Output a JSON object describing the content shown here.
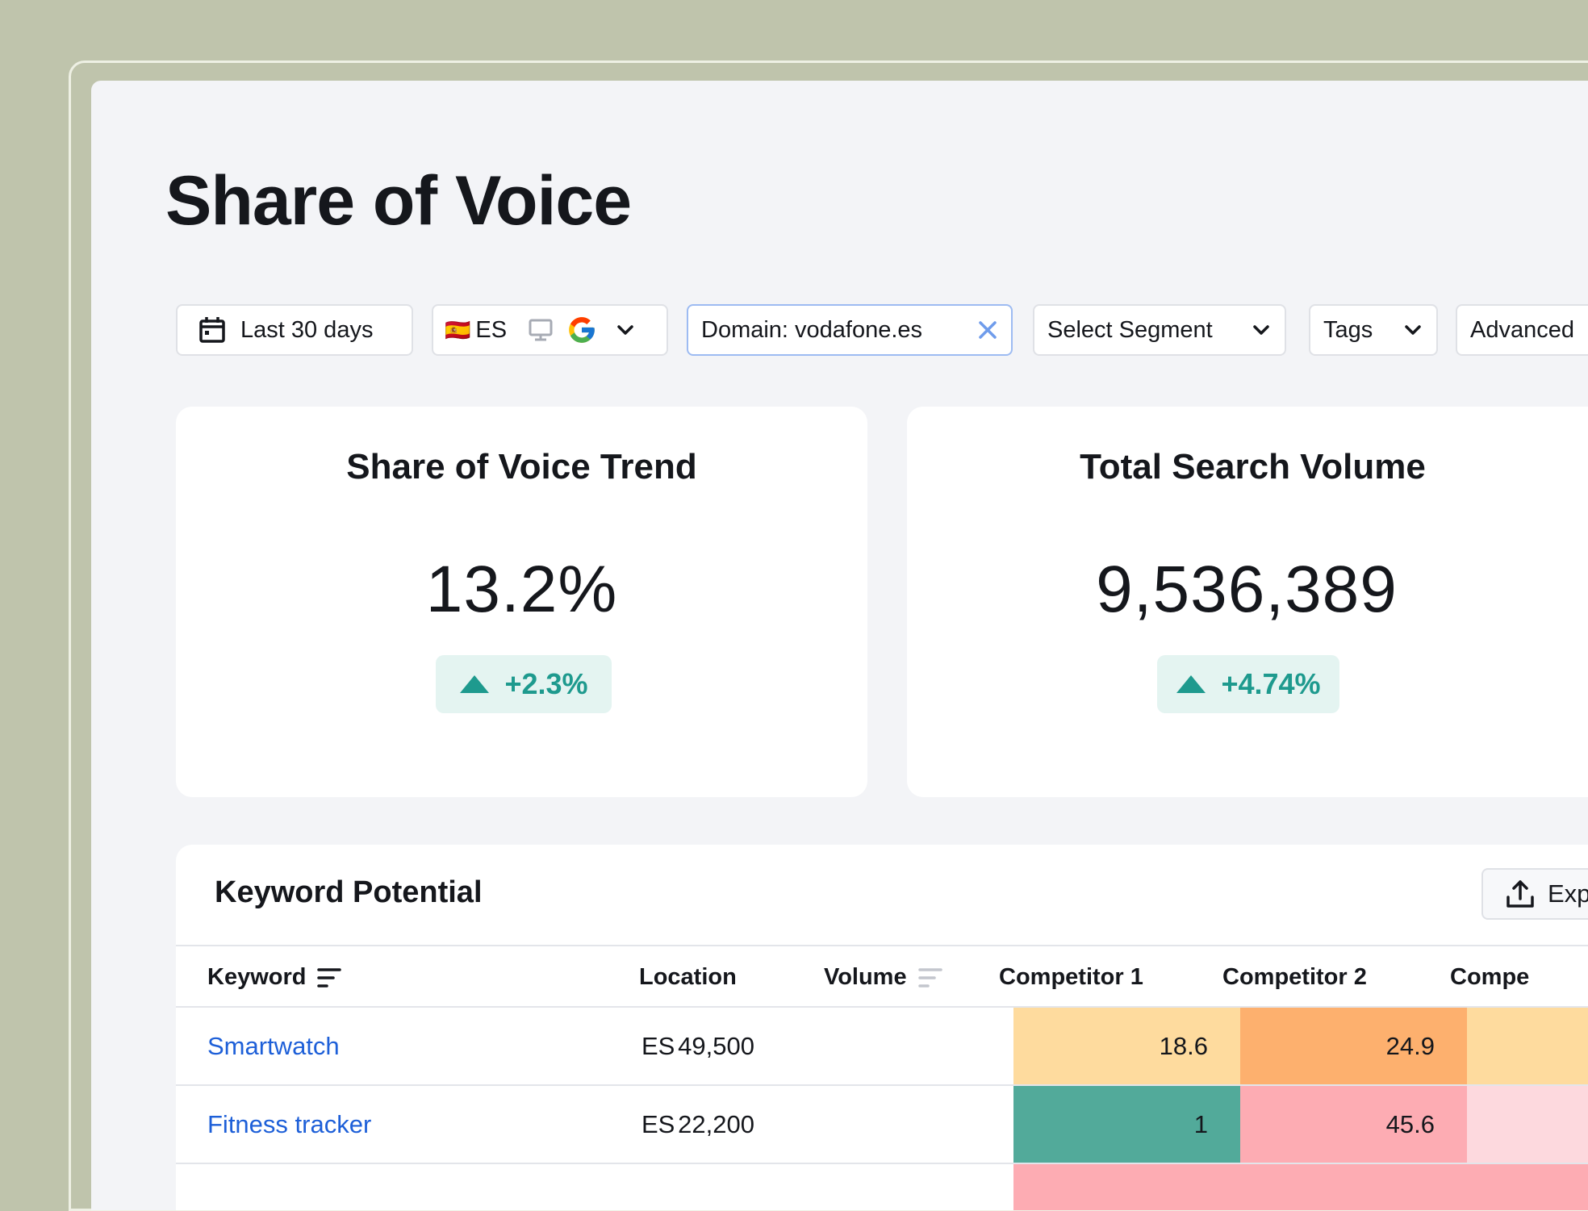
{
  "page": {
    "title": "Share of Voice"
  },
  "filters": {
    "date": "Last 30 days",
    "country_flag": "🇪🇸",
    "country": "ES",
    "domain": "Domain: vodafone.es",
    "segment": "Select Segment",
    "tags": "Tags",
    "advanced": "Advanced"
  },
  "cards": [
    {
      "title": "Share of Voice Trend",
      "value": "13.2%",
      "change": "+2.3%"
    },
    {
      "title": "Total Search Volume",
      "value": "9,536,389",
      "change": "+4.74%"
    }
  ],
  "keyword_potential": {
    "title": "Keyword Potential",
    "export_label": "Exp",
    "columns": [
      "Keyword",
      "Location",
      "Volume",
      "Competitor 1",
      "Competitor 2",
      "Compe"
    ],
    "rows": [
      {
        "keyword": "Smartwatch",
        "location": "ES",
        "volume": "49,500",
        "c1": "18.6",
        "c2": "24.9"
      },
      {
        "keyword": "Fitness tracker",
        "location": "ES",
        "volume": "22,200",
        "c1": "1",
        "c2": "45.6"
      }
    ]
  },
  "colors": {
    "accent_link": "#1d5fd8",
    "positive": "#1e9a8e",
    "heat_light_orange": "#fedb9e",
    "heat_orange": "#fdb06e",
    "heat_green": "#52aa9a",
    "heat_pink": "#fdacb3",
    "heat_light_pink": "#fdd9de"
  }
}
